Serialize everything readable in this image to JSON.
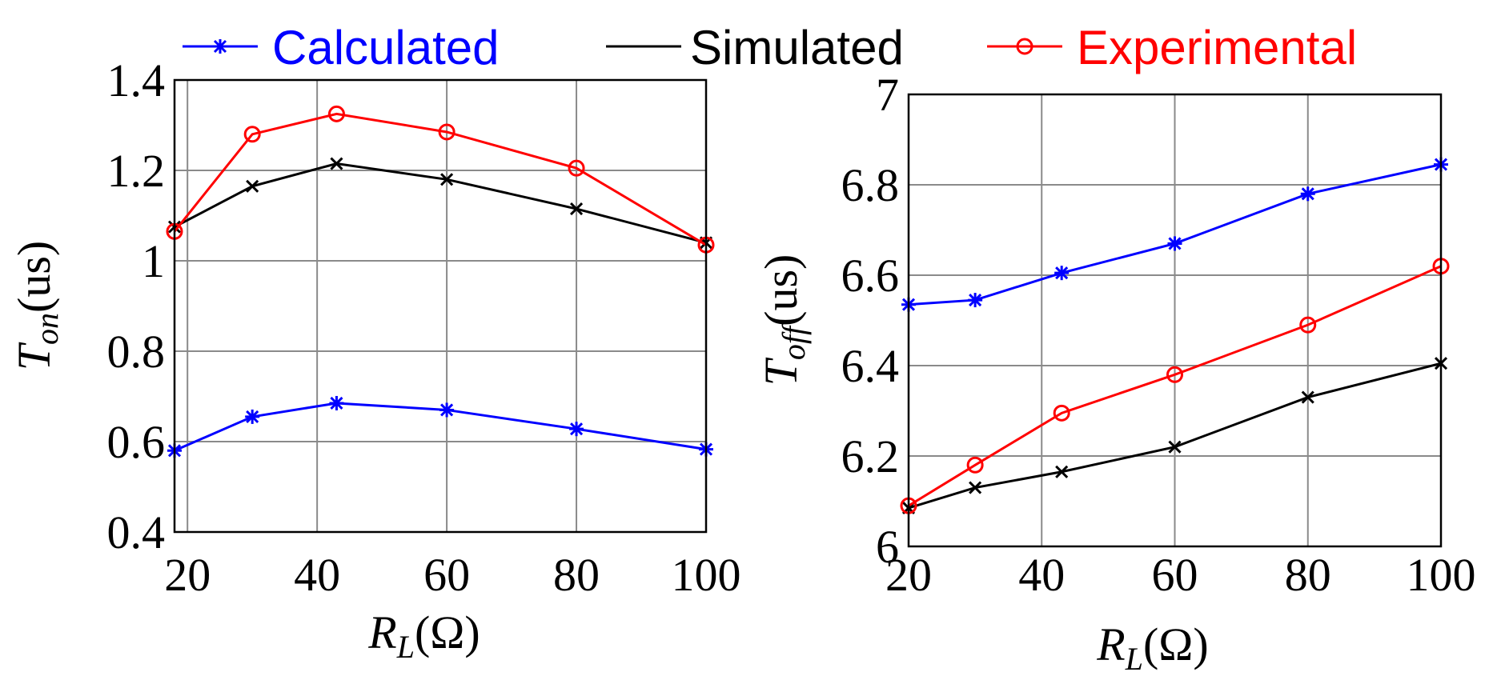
{
  "legend": [
    {
      "label": "Calculated",
      "color": "#0000ff",
      "marker": "asterisk"
    },
    {
      "label": "Simulated",
      "color": "#000000",
      "marker": "none"
    },
    {
      "label": "Experimental",
      "color": "#ff0000",
      "marker": "circle"
    }
  ],
  "chart_data": [
    {
      "type": "line",
      "ylabel_main": "T",
      "ylabel_sub": "on",
      "ylabel_unit": "(us)",
      "xlabel_main": "R",
      "xlabel_sub": "L",
      "xlabel_unit": "(Ω)",
      "xlim": [
        18,
        100
      ],
      "ylim": [
        0.4,
        1.4
      ],
      "xticks": [
        20,
        40,
        60,
        80,
        100
      ],
      "yticks": [
        0.4,
        0.6,
        0.8,
        1.0,
        1.2,
        1.4
      ],
      "xtick_labels": [
        "20",
        "40",
        "60",
        "80",
        "100"
      ],
      "ytick_labels": [
        "0.4",
        "0.6",
        "0.8",
        "1",
        "1.2",
        "1.4"
      ],
      "grid": true,
      "x": [
        18,
        30,
        43,
        60,
        80,
        100
      ],
      "series": [
        {
          "name": "Calculated",
          "color": "#0000ff",
          "marker": "asterisk",
          "values": [
            0.58,
            0.655,
            0.685,
            0.67,
            0.628,
            0.583
          ]
        },
        {
          "name": "Simulated",
          "color": "#000000",
          "marker": "x",
          "values": [
            1.075,
            1.165,
            1.215,
            1.18,
            1.115,
            1.04
          ]
        },
        {
          "name": "Experimental",
          "color": "#ff0000",
          "marker": "circle",
          "values": [
            1.065,
            1.28,
            1.325,
            1.285,
            1.205,
            1.035
          ]
        }
      ]
    },
    {
      "type": "line",
      "ylabel_main": "T",
      "ylabel_sub": "off",
      "ylabel_unit": "(us)",
      "xlabel_main": "R",
      "xlabel_sub": "L",
      "xlabel_unit": "(Ω)",
      "xlim": [
        20,
        100
      ],
      "ylim": [
        6.0,
        7.0
      ],
      "xticks": [
        20,
        40,
        60,
        80,
        100
      ],
      "yticks": [
        6.0,
        6.2,
        6.4,
        6.6,
        6.8,
        7.0
      ],
      "xtick_labels": [
        "20",
        "40",
        "60",
        "80",
        "100"
      ],
      "ytick_labels": [
        "6",
        "6.2",
        "6.4",
        "6.6",
        "6.8",
        "7"
      ],
      "grid": true,
      "x": [
        20,
        30,
        43,
        60,
        80,
        100
      ],
      "series": [
        {
          "name": "Calculated",
          "color": "#0000ff",
          "marker": "asterisk",
          "values": [
            6.535,
            6.545,
            6.605,
            6.67,
            6.78,
            6.845
          ]
        },
        {
          "name": "Simulated",
          "color": "#000000",
          "marker": "x",
          "values": [
            6.085,
            6.13,
            6.165,
            6.22,
            6.33,
            6.405
          ]
        },
        {
          "name": "Experimental",
          "color": "#ff0000",
          "marker": "circle",
          "values": [
            6.09,
            6.18,
            6.295,
            6.38,
            6.49,
            6.62
          ]
        }
      ]
    }
  ]
}
